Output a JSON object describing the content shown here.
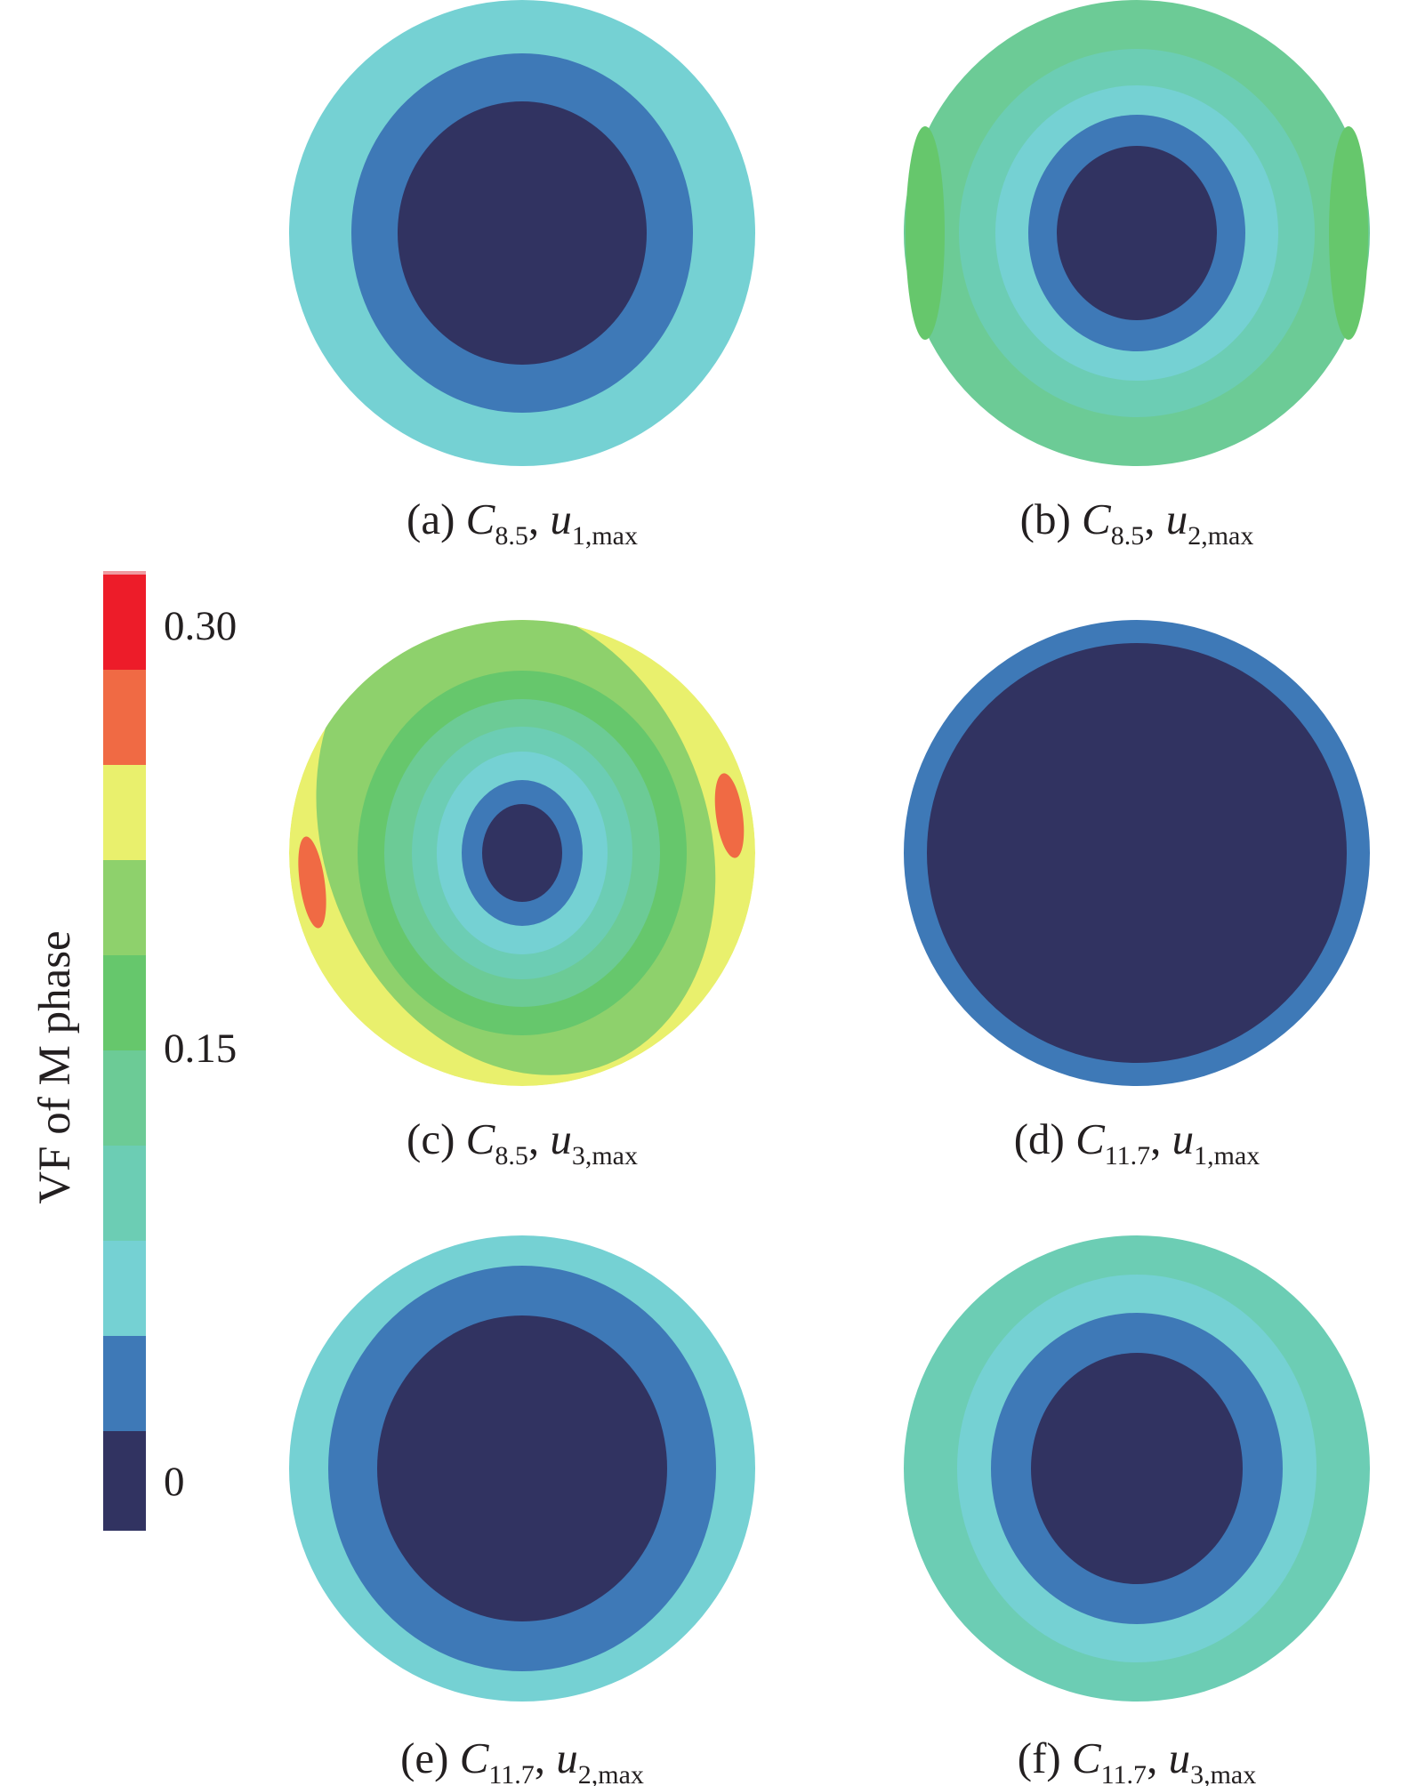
{
  "colorbar": {
    "title": "VF of M phase",
    "tick_labels": [
      "0.30",
      "0.15",
      "0"
    ],
    "levels": [
      {
        "value": 0.0,
        "color": "#313361"
      },
      {
        "value": 0.03,
        "color": "#3e79b7"
      },
      {
        "value": 0.06,
        "color": "#75d1d3"
      },
      {
        "value": 0.09,
        "color": "#6ccdb4"
      },
      {
        "value": 0.12,
        "color": "#6ccb96"
      },
      {
        "value": 0.15,
        "color": "#66c76c"
      },
      {
        "value": 0.18,
        "color": "#8ed16c"
      },
      {
        "value": 0.21,
        "color": "#e9f06d"
      },
      {
        "value": 0.24,
        "color": "#f06a44"
      },
      {
        "value": 0.27,
        "color": "#ed1c29"
      }
    ]
  },
  "panels": [
    {
      "id": "a",
      "prefix": "(a) ",
      "var": "C",
      "sub": "8.5",
      "sep": ", ",
      "var2": "u",
      "sub2": "1,max",
      "rings": [
        0.06,
        0.03,
        0.0
      ]
    },
    {
      "id": "b",
      "prefix": "(b) ",
      "var": "C",
      "sub": "8.5",
      "sep": ", ",
      "var2": "u",
      "sub2": "2,max",
      "rings": [
        0.12,
        0.09,
        0.06,
        0.03,
        0.0
      ]
    },
    {
      "id": "c",
      "prefix": "(c) ",
      "var": "C",
      "sub": "8.5",
      "sep": ", ",
      "var2": "u",
      "sub2": "3,max",
      "rings": [
        0.21,
        0.18,
        0.15,
        0.12,
        0.09,
        0.06,
        0.03,
        0.0
      ]
    },
    {
      "id": "d",
      "prefix": "(d) ",
      "var": "C",
      "sub": "11.7",
      "sep": ", ",
      "var2": "u",
      "sub2": "1,max",
      "rings": [
        0.03,
        0.0
      ]
    },
    {
      "id": "e",
      "prefix": "(e) ",
      "var": "C",
      "sub": "11.7",
      "sep": ", ",
      "var2": "u",
      "sub2": "2,max",
      "rings": [
        0.06,
        0.03,
        0.0
      ]
    },
    {
      "id": "f",
      "prefix": "(f) ",
      "var": "C",
      "sub": "11.7",
      "sep": ", ",
      "var2": "u",
      "sub2": "3,max",
      "rings": [
        0.09,
        0.06,
        0.03,
        0.0
      ]
    }
  ]
}
